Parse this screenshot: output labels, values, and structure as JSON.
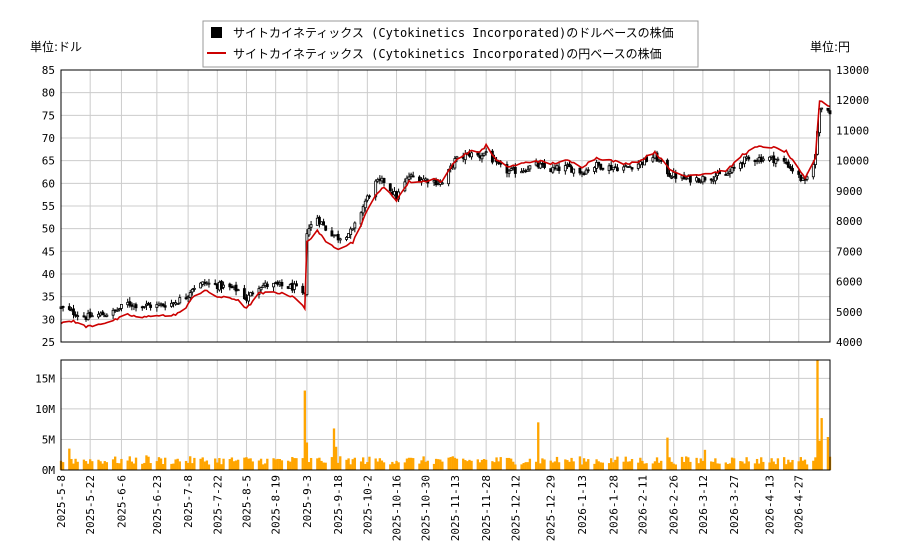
{
  "chart_data": [
    {
      "type": "candlestick+line",
      "legend": {
        "placement": "top-center",
        "entries": [
          {
            "label": "サイトカイネティックス (Cytokinetics Incorporated)のドルベースの株価",
            "color": "#000000",
            "marker": "square"
          },
          {
            "label": "サイトカイネティックス (Cytokinetics Incorporated)の円ベースの株価",
            "color": "#cc0000",
            "marker": "line"
          }
        ]
      },
      "left_unit_label": "単位:ドル",
      "right_unit_label": "単位:円",
      "ylim_usd": [
        25,
        85
      ],
      "yticks_usd": [
        "85",
        "80",
        "75",
        "70",
        "65",
        "60",
        "55",
        "50",
        "45",
        "40",
        "35",
        "30",
        "25"
      ],
      "ylim_jpy": [
        4000,
        13000
      ],
      "yticks_jpy": [
        "13000",
        "12000",
        "11000",
        "10000",
        "9000",
        "8000",
        "7000",
        "6000",
        "5000",
        "4000"
      ],
      "grid": true,
      "usd_keypoints": [
        [
          "2025-05-08",
          32.5
        ],
        [
          "2025-05-14",
          31.5
        ],
        [
          "2025-05-20",
          30.5
        ],
        [
          "2025-06-02",
          31.5
        ],
        [
          "2025-06-09",
          33.5
        ],
        [
          "2025-06-16",
          33.0
        ],
        [
          "2025-06-23",
          33.0
        ],
        [
          "2025-06-30",
          33.5
        ],
        [
          "2025-07-07",
          35.0
        ],
        [
          "2025-07-10",
          37.0
        ],
        [
          "2025-07-16",
          38.0
        ],
        [
          "2025-07-22",
          37.5
        ],
        [
          "2025-08-01",
          36.5
        ],
        [
          "2025-08-05",
          34.5
        ],
        [
          "2025-08-11",
          37.5
        ],
        [
          "2025-08-19",
          37.5
        ],
        [
          "2025-08-28",
          37.0
        ],
        [
          "2025-09-02",
          35.0
        ],
        [
          "2025-09-03",
          49.5
        ],
        [
          "2025-09-08",
          52.5
        ],
        [
          "2025-09-12",
          50.0
        ],
        [
          "2025-09-18",
          48.0
        ],
        [
          "2025-09-25",
          49.5
        ],
        [
          "2025-10-01",
          56.0
        ],
        [
          "2025-10-06",
          60.0
        ],
        [
          "2025-10-10",
          60.5
        ],
        [
          "2025-10-16",
          57.0
        ],
        [
          "2025-10-22",
          61.5
        ],
        [
          "2025-10-28",
          61.0
        ],
        [
          "2025-11-03",
          60.5
        ],
        [
          "2025-11-07",
          60.0
        ],
        [
          "2025-11-13",
          65.0
        ],
        [
          "2025-11-20",
          66.5
        ],
        [
          "2025-11-25",
          66.0
        ],
        [
          "2025-11-28",
          67.0
        ],
        [
          "2025-12-03",
          64.0
        ],
        [
          "2025-12-09",
          62.5
        ],
        [
          "2025-12-15",
          63.0
        ],
        [
          "2025-12-22",
          64.0
        ],
        [
          "2025-12-29",
          63.0
        ],
        [
          "2026-01-06",
          63.5
        ],
        [
          "2026-01-13",
          62.5
        ],
        [
          "2026-01-20",
          64.0
        ],
        [
          "2026-01-27",
          63.5
        ],
        [
          "2026-02-03",
          63.5
        ],
        [
          "2026-02-10",
          64.5
        ],
        [
          "2026-02-17",
          66.0
        ],
        [
          "2026-02-24",
          62.0
        ],
        [
          "2026-03-03",
          61.0
        ],
        [
          "2026-03-10",
          61.0
        ],
        [
          "2026-03-17",
          61.5
        ],
        [
          "2026-03-24",
          62.0
        ],
        [
          "2026-03-31",
          65.0
        ],
        [
          "2026-04-07",
          65.5
        ],
        [
          "2026-04-14",
          65.5
        ],
        [
          "2026-04-21",
          64.5
        ],
        [
          "2026-04-27",
          61.5
        ],
        [
          "2026-04-30",
          60.0
        ],
        [
          "2026-05-05",
          66.0
        ],
        [
          "2026-05-07",
          77.0
        ],
        [
          "2026-05-12",
          76.0
        ]
      ],
      "jpy_keypoints": [
        [
          "2025-05-08",
          4600
        ],
        [
          "2025-05-14",
          4700
        ],
        [
          "2025-05-20",
          4500
        ],
        [
          "2025-06-02",
          4700
        ],
        [
          "2025-06-09",
          4900
        ],
        [
          "2025-06-16",
          4800
        ],
        [
          "2025-06-23",
          4900
        ],
        [
          "2025-06-30",
          4850
        ],
        [
          "2025-07-07",
          5100
        ],
        [
          "2025-07-10",
          5500
        ],
        [
          "2025-07-16",
          5700
        ],
        [
          "2025-07-22",
          5500
        ],
        [
          "2025-08-01",
          5400
        ],
        [
          "2025-08-05",
          5100
        ],
        [
          "2025-08-11",
          5600
        ],
        [
          "2025-08-19",
          5650
        ],
        [
          "2025-08-28",
          5500
        ],
        [
          "2025-09-02",
          5100
        ],
        [
          "2025-09-03",
          7300
        ],
        [
          "2025-09-08",
          7700
        ],
        [
          "2025-09-12",
          7300
        ],
        [
          "2025-09-18",
          7100
        ],
        [
          "2025-09-25",
          7300
        ],
        [
          "2025-10-01",
          8200
        ],
        [
          "2025-10-06",
          8900
        ],
        [
          "2025-10-10",
          9100
        ],
        [
          "2025-10-16",
          8700
        ],
        [
          "2025-10-22",
          9300
        ],
        [
          "2025-10-28",
          9300
        ],
        [
          "2025-11-03",
          9400
        ],
        [
          "2025-11-07",
          9300
        ],
        [
          "2025-11-13",
          10000
        ],
        [
          "2025-11-20",
          10300
        ],
        [
          "2025-11-25",
          10300
        ],
        [
          "2025-11-28",
          10500
        ],
        [
          "2025-12-03",
          10000
        ],
        [
          "2025-12-09",
          9800
        ],
        [
          "2025-12-15",
          9900
        ],
        [
          "2025-12-22",
          10000
        ],
        [
          "2025-12-29",
          9900
        ],
        [
          "2026-01-06",
          10000
        ],
        [
          "2026-01-13",
          9800
        ],
        [
          "2026-01-20",
          10100
        ],
        [
          "2026-01-27",
          10000
        ],
        [
          "2026-02-03",
          9900
        ],
        [
          "2026-02-10",
          10000
        ],
        [
          "2026-02-17",
          10300
        ],
        [
          "2026-02-24",
          9700
        ],
        [
          "2026-03-03",
          9500
        ],
        [
          "2026-03-10",
          9550
        ],
        [
          "2026-03-17",
          9600
        ],
        [
          "2026-03-24",
          9700
        ],
        [
          "2026-03-31",
          10200
        ],
        [
          "2026-04-07",
          10450
        ],
        [
          "2026-04-14",
          10450
        ],
        [
          "2026-04-21",
          10300
        ],
        [
          "2026-04-27",
          9700
        ],
        [
          "2026-04-30",
          9400
        ],
        [
          "2026-05-05",
          10100
        ],
        [
          "2026-05-07",
          12000
        ],
        [
          "2026-05-12",
          11800
        ]
      ]
    },
    {
      "type": "bar",
      "series_name": "volume",
      "ylim": [
        0,
        18000000
      ],
      "yticks": [
        "15M",
        "10M",
        "5M",
        "0M"
      ],
      "grid": true,
      "color": "#ffa500",
      "typical_volume": 1500000,
      "spikes": [
        [
          "2025-05-12",
          3500000
        ],
        [
          "2025-06-18",
          2400000
        ],
        [
          "2025-09-02",
          13000000
        ],
        [
          "2025-09-03",
          4500000
        ],
        [
          "2025-09-16",
          6800000
        ],
        [
          "2025-09-17",
          3800000
        ],
        [
          "2025-12-23",
          7800000
        ],
        [
          "2026-02-23",
          5300000
        ],
        [
          "2026-03-13",
          3300000
        ],
        [
          "2026-05-06",
          18000000
        ],
        [
          "2026-05-07",
          4800000
        ],
        [
          "2026-05-08",
          8500000
        ],
        [
          "2026-05-11",
          5400000
        ]
      ],
      "x_ticks": [
        "2025-5-8",
        "2025-5-22",
        "2025-6-6",
        "2025-6-23",
        "2025-7-8",
        "2025-7-22",
        "2025-8-5",
        "2025-8-19",
        "2025-9-3",
        "2025-9-18",
        "2025-10-2",
        "2025-10-16",
        "2025-10-30",
        "2025-11-13",
        "2025-11-28",
        "2025-12-12",
        "2025-12-29",
        "2026-1-13",
        "2026-1-28",
        "2026-2-11",
        "2026-2-26",
        "2026-3-12",
        "2026-3-27",
        "2026-4-13",
        "2026-4-27"
      ]
    }
  ]
}
